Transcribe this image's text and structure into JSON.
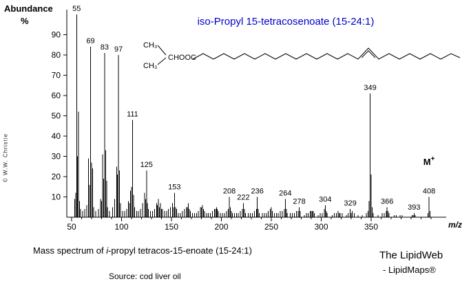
{
  "title": {
    "text": "iso-Propyl 15-tetracosenoate  (15-24:1)",
    "color": "#0000cc"
  },
  "y_axis": {
    "title": "Abundance",
    "unit": "%"
  },
  "watermark": "© W.W. Christie",
  "structure": {
    "ch3_top": "CH₃",
    "ch3_bottom": "CH₃",
    "ester": "CHOOC"
  },
  "molecular_ion": {
    "text": "M",
    "sup": "+"
  },
  "captions": {
    "main_prefix": "Mass spectrum of ",
    "main_italic": "i",
    "main_suffix": "-propyl tetracos-15-enoate (15-24:1)",
    "source": "Source: cod liver oil",
    "brand_line1": "The LipidWeb",
    "brand_line2": "- LipidMaps®"
  },
  "chart_data": {
    "type": "bar",
    "subtype": "mass-spectrum",
    "title": "iso-Propyl 15-tetracosenoate (15-24:1)",
    "xlabel": "m/z",
    "ylabel": "Abundance %",
    "xlim": [
      45,
      425
    ],
    "ylim": [
      0,
      100
    ],
    "grid": false,
    "y_ticks": [
      10,
      20,
      30,
      40,
      50,
      60,
      70,
      80,
      90
    ],
    "x_ticks": [
      50,
      100,
      150,
      200,
      250,
      300,
      350
    ],
    "molecular_ion_mz": 408,
    "peak_labels": [
      {
        "mz": 55,
        "rel": 100
      },
      {
        "mz": 69,
        "rel": 84
      },
      {
        "mz": 83,
        "rel": 81
      },
      {
        "mz": 97,
        "rel": 80
      },
      {
        "mz": 111,
        "rel": 48
      },
      {
        "mz": 125,
        "rel": 23
      },
      {
        "mz": 153,
        "rel": 12
      },
      {
        "mz": 208,
        "rel": 10
      },
      {
        "mz": 222,
        "rel": 7
      },
      {
        "mz": 236,
        "rel": 10
      },
      {
        "mz": 264,
        "rel": 9
      },
      {
        "mz": 278,
        "rel": 5
      },
      {
        "mz": 304,
        "rel": 6
      },
      {
        "mz": 329,
        "rel": 4
      },
      {
        "mz": 349,
        "rel": 61
      },
      {
        "mz": 366,
        "rel": 5
      },
      {
        "mz": 393,
        "rel": 2
      },
      {
        "mz": 408,
        "rel": 10
      }
    ],
    "peaks": [
      [
        53,
        9
      ],
      [
        54,
        12
      ],
      [
        55,
        100
      ],
      [
        56,
        30
      ],
      [
        57,
        52
      ],
      [
        58,
        8
      ],
      [
        59,
        4
      ],
      [
        61,
        3
      ],
      [
        63,
        4
      ],
      [
        65,
        6
      ],
      [
        67,
        29
      ],
      [
        68,
        16
      ],
      [
        69,
        84
      ],
      [
        70,
        27
      ],
      [
        71,
        24
      ],
      [
        72,
        5
      ],
      [
        74,
        3
      ],
      [
        77,
        4
      ],
      [
        79,
        9
      ],
      [
        80,
        8
      ],
      [
        81,
        31
      ],
      [
        82,
        19
      ],
      [
        83,
        81
      ],
      [
        84,
        33
      ],
      [
        85,
        18
      ],
      [
        86,
        5
      ],
      [
        88,
        3
      ],
      [
        91,
        5
      ],
      [
        93,
        9
      ],
      [
        95,
        25
      ],
      [
        96,
        21
      ],
      [
        97,
        80
      ],
      [
        98,
        23
      ],
      [
        99,
        7
      ],
      [
        101,
        3
      ],
      [
        103,
        3
      ],
      [
        105,
        4
      ],
      [
        107,
        8
      ],
      [
        108,
        7
      ],
      [
        109,
        13
      ],
      [
        110,
        15
      ],
      [
        111,
        48
      ],
      [
        112,
        11
      ],
      [
        113,
        5
      ],
      [
        115,
        3
      ],
      [
        117,
        3
      ],
      [
        119,
        4
      ],
      [
        121,
        7
      ],
      [
        123,
        12
      ],
      [
        124,
        9
      ],
      [
        125,
        23
      ],
      [
        126,
        7
      ],
      [
        127,
        4
      ],
      [
        129,
        3
      ],
      [
        131,
        3
      ],
      [
        133,
        4
      ],
      [
        135,
        7
      ],
      [
        136,
        6
      ],
      [
        137,
        9
      ],
      [
        138,
        5
      ],
      [
        139,
        7
      ],
      [
        140,
        4
      ],
      [
        141,
        4
      ],
      [
        143,
        3
      ],
      [
        145,
        3
      ],
      [
        147,
        4
      ],
      [
        149,
        5
      ],
      [
        151,
        7
      ],
      [
        152,
        5
      ],
      [
        153,
        12
      ],
      [
        154,
        5
      ],
      [
        155,
        4
      ],
      [
        157,
        2
      ],
      [
        159,
        2
      ],
      [
        161,
        3
      ],
      [
        163,
        4
      ],
      [
        165,
        5
      ],
      [
        166,
        5
      ],
      [
        167,
        7
      ],
      [
        168,
        4
      ],
      [
        169,
        3
      ],
      [
        171,
        2
      ],
      [
        173,
        2
      ],
      [
        175,
        2
      ],
      [
        177,
        3
      ],
      [
        179,
        5
      ],
      [
        180,
        5
      ],
      [
        181,
        6
      ],
      [
        182,
        4
      ],
      [
        183,
        3
      ],
      [
        185,
        2
      ],
      [
        187,
        2
      ],
      [
        189,
        2
      ],
      [
        191,
        3
      ],
      [
        193,
        4
      ],
      [
        194,
        4
      ],
      [
        195,
        5
      ],
      [
        196,
        4
      ],
      [
        197,
        3
      ],
      [
        199,
        2
      ],
      [
        201,
        2
      ],
      [
        203,
        2
      ],
      [
        205,
        3
      ],
      [
        207,
        4
      ],
      [
        208,
        10
      ],
      [
        209,
        5
      ],
      [
        210,
        3
      ],
      [
        211,
        2
      ],
      [
        213,
        2
      ],
      [
        215,
        2
      ],
      [
        217,
        2
      ],
      [
        219,
        3
      ],
      [
        221,
        4
      ],
      [
        222,
        7
      ],
      [
        223,
        4
      ],
      [
        224,
        2
      ],
      [
        227,
        2
      ],
      [
        229,
        2
      ],
      [
        231,
        2
      ],
      [
        233,
        3
      ],
      [
        235,
        4
      ],
      [
        236,
        10
      ],
      [
        237,
        4
      ],
      [
        238,
        2
      ],
      [
        241,
        2
      ],
      [
        243,
        2
      ],
      [
        245,
        2
      ],
      [
        247,
        3
      ],
      [
        249,
        4
      ],
      [
        250,
        5
      ],
      [
        251,
        3
      ],
      [
        253,
        2
      ],
      [
        255,
        2
      ],
      [
        257,
        2
      ],
      [
        259,
        3
      ],
      [
        261,
        3
      ],
      [
        263,
        4
      ],
      [
        264,
        9
      ],
      [
        265,
        4
      ],
      [
        266,
        2
      ],
      [
        269,
        2
      ],
      [
        271,
        2
      ],
      [
        273,
        2
      ],
      [
        275,
        3
      ],
      [
        277,
        3
      ],
      [
        278,
        5
      ],
      [
        279,
        3
      ],
      [
        283,
        1
      ],
      [
        285,
        2
      ],
      [
        287,
        2
      ],
      [
        289,
        3
      ],
      [
        290,
        3
      ],
      [
        291,
        3
      ],
      [
        292,
        3
      ],
      [
        293,
        2
      ],
      [
        297,
        1
      ],
      [
        299,
        2
      ],
      [
        301,
        2
      ],
      [
        303,
        4
      ],
      [
        304,
        6
      ],
      [
        305,
        3
      ],
      [
        306,
        2
      ],
      [
        311,
        1
      ],
      [
        313,
        2
      ],
      [
        315,
        2
      ],
      [
        317,
        3
      ],
      [
        318,
        2
      ],
      [
        319,
        2
      ],
      [
        321,
        2
      ],
      [
        325,
        1
      ],
      [
        327,
        2
      ],
      [
        329,
        4
      ],
      [
        330,
        2
      ],
      [
        331,
        3
      ],
      [
        333,
        2
      ],
      [
        337,
        1
      ],
      [
        341,
        1
      ],
      [
        345,
        2
      ],
      [
        347,
        3
      ],
      [
        348,
        8
      ],
      [
        349,
        61
      ],
      [
        350,
        21
      ],
      [
        351,
        5
      ],
      [
        352,
        2
      ],
      [
        357,
        1
      ],
      [
        361,
        2
      ],
      [
        363,
        2
      ],
      [
        365,
        3
      ],
      [
        366,
        5
      ],
      [
        367,
        3
      ],
      [
        368,
        2
      ],
      [
        373,
        1
      ],
      [
        375,
        1
      ],
      [
        379,
        1
      ],
      [
        381,
        1
      ],
      [
        391,
        1
      ],
      [
        392,
        1
      ],
      [
        393,
        2
      ],
      [
        394,
        1
      ],
      [
        407,
        2
      ],
      [
        408,
        10
      ],
      [
        409,
        3
      ]
    ]
  }
}
